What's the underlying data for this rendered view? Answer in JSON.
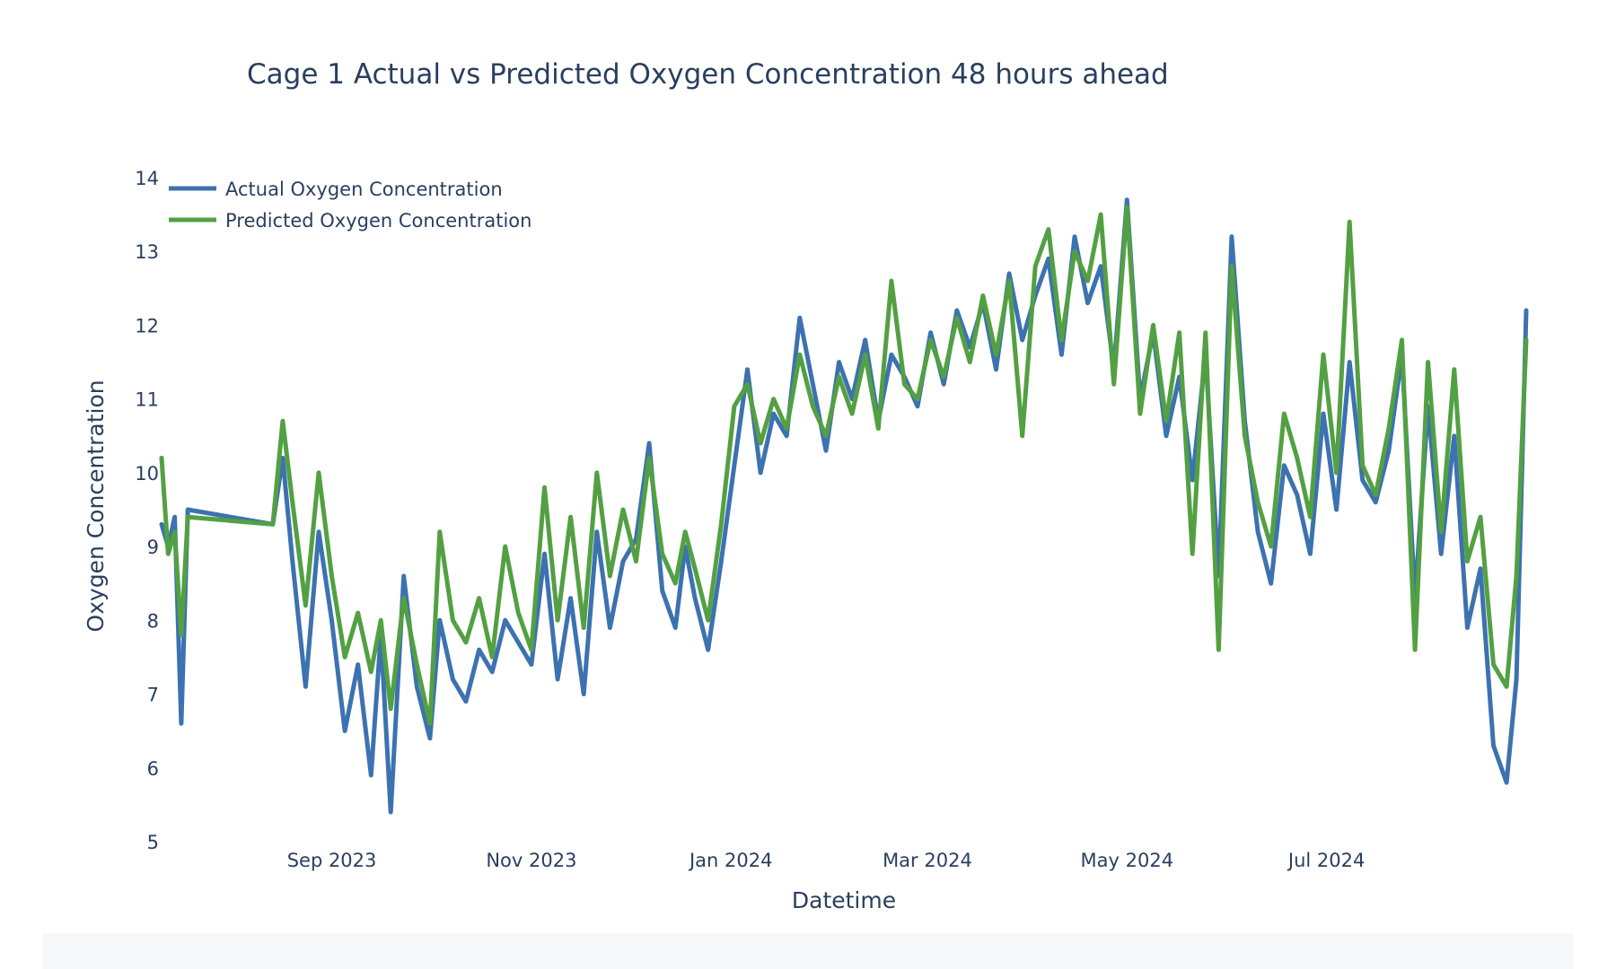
{
  "chart_data": {
    "type": "line",
    "title": "Cage 1 Actual vs Predicted Oxygen Concentration 48 hours ahead",
    "xlabel": "Datetime",
    "ylabel": "Oxygen Concentration",
    "x_type": "date",
    "xlim": [
      "2023-07-11",
      "2024-08-31"
    ],
    "ylim": [
      5,
      14
    ],
    "y_ticks": [
      5,
      6,
      7,
      8,
      9,
      10,
      11,
      12,
      13,
      14
    ],
    "x_ticks": [
      {
        "date": "2023-09-01",
        "label": "Sep 2023"
      },
      {
        "date": "2023-11-01",
        "label": "Nov 2023"
      },
      {
        "date": "2024-01-01",
        "label": "Jan 2024"
      },
      {
        "date": "2024-03-01",
        "label": "Mar 2024"
      },
      {
        "date": "2024-05-01",
        "label": "May 2024"
      },
      {
        "date": "2024-07-01",
        "label": "Jul 2024"
      }
    ],
    "grid": false,
    "legend_position": "top-left",
    "series": [
      {
        "name": "Actual Oxygen Concentration",
        "color": "#3d72b0",
        "x": [
          "2023-07-11",
          "2023-07-13",
          "2023-07-15",
          "2023-07-17",
          "2023-07-19",
          "2023-08-14",
          "2023-08-17",
          "2023-08-20",
          "2023-08-24",
          "2023-08-28",
          "2023-09-01",
          "2023-09-05",
          "2023-09-09",
          "2023-09-13",
          "2023-09-16",
          "2023-09-19",
          "2023-09-23",
          "2023-09-27",
          "2023-10-01",
          "2023-10-04",
          "2023-10-08",
          "2023-10-12",
          "2023-10-16",
          "2023-10-20",
          "2023-10-24",
          "2023-10-28",
          "2023-11-01",
          "2023-11-05",
          "2023-11-09",
          "2023-11-13",
          "2023-11-17",
          "2023-11-21",
          "2023-11-25",
          "2023-11-29",
          "2023-12-03",
          "2023-12-07",
          "2023-12-11",
          "2023-12-15",
          "2023-12-18",
          "2023-12-21",
          "2023-12-25",
          "2023-12-29",
          "2024-01-02",
          "2024-01-06",
          "2024-01-10",
          "2024-01-14",
          "2024-01-18",
          "2024-01-22",
          "2024-01-26",
          "2024-01-30",
          "2024-02-03",
          "2024-02-07",
          "2024-02-11",
          "2024-02-15",
          "2024-02-19",
          "2024-02-23",
          "2024-02-27",
          "2024-03-02",
          "2024-03-06",
          "2024-03-10",
          "2024-03-14",
          "2024-03-18",
          "2024-03-22",
          "2024-03-26",
          "2024-03-30",
          "2024-04-03",
          "2024-04-07",
          "2024-04-11",
          "2024-04-15",
          "2024-04-19",
          "2024-04-23",
          "2024-04-27",
          "2024-05-01",
          "2024-05-05",
          "2024-05-09",
          "2024-05-13",
          "2024-05-17",
          "2024-05-21",
          "2024-05-25",
          "2024-05-29",
          "2024-06-02",
          "2024-06-06",
          "2024-06-10",
          "2024-06-14",
          "2024-06-18",
          "2024-06-22",
          "2024-06-26",
          "2024-06-30",
          "2024-07-04",
          "2024-07-08",
          "2024-07-12",
          "2024-07-16",
          "2024-07-20",
          "2024-07-24",
          "2024-07-28",
          "2024-08-01",
          "2024-08-05",
          "2024-08-09",
          "2024-08-13",
          "2024-08-17",
          "2024-08-21",
          "2024-08-25",
          "2024-08-28",
          "2024-08-31"
        ],
        "y": [
          9.3,
          9.0,
          9.4,
          6.6,
          9.5,
          9.3,
          10.2,
          8.8,
          7.1,
          9.2,
          8.0,
          6.5,
          7.4,
          5.9,
          7.8,
          5.4,
          8.6,
          7.1,
          6.4,
          8.0,
          7.2,
          6.9,
          7.6,
          7.3,
          8.0,
          7.7,
          7.4,
          8.9,
          7.2,
          8.3,
          7.0,
          9.2,
          7.9,
          8.8,
          9.1,
          10.4,
          8.4,
          7.9,
          9.0,
          8.3,
          7.6,
          8.8,
          10.1,
          11.4,
          10.0,
          10.8,
          10.5,
          12.1,
          11.2,
          10.3,
          11.5,
          11.0,
          11.8,
          10.7,
          11.6,
          11.3,
          10.9,
          11.9,
          11.2,
          12.2,
          11.7,
          12.3,
          11.4,
          12.7,
          11.8,
          12.4,
          12.9,
          11.6,
          13.2,
          12.3,
          12.8,
          11.4,
          13.7,
          11.0,
          11.9,
          10.5,
          11.3,
          9.9,
          11.6,
          8.6,
          13.2,
          10.7,
          9.2,
          8.5,
          10.1,
          9.7,
          8.9,
          10.8,
          9.5,
          11.5,
          9.9,
          9.6,
          10.3,
          11.6,
          8.3,
          10.9,
          8.9,
          10.5,
          7.9,
          8.7,
          6.3,
          5.8,
          7.2,
          12.2
        ]
      },
      {
        "name": "Predicted Oxygen Concentration",
        "color": "#53a043",
        "x": [
          "2023-07-11",
          "2023-07-13",
          "2023-07-15",
          "2023-07-17",
          "2023-07-19",
          "2023-08-14",
          "2023-08-17",
          "2023-08-20",
          "2023-08-24",
          "2023-08-28",
          "2023-09-01",
          "2023-09-05",
          "2023-09-09",
          "2023-09-13",
          "2023-09-16",
          "2023-09-19",
          "2023-09-23",
          "2023-09-27",
          "2023-10-01",
          "2023-10-04",
          "2023-10-08",
          "2023-10-12",
          "2023-10-16",
          "2023-10-20",
          "2023-10-24",
          "2023-10-28",
          "2023-11-01",
          "2023-11-05",
          "2023-11-09",
          "2023-11-13",
          "2023-11-17",
          "2023-11-21",
          "2023-11-25",
          "2023-11-29",
          "2023-12-03",
          "2023-12-07",
          "2023-12-11",
          "2023-12-15",
          "2023-12-18",
          "2023-12-21",
          "2023-12-25",
          "2023-12-29",
          "2024-01-02",
          "2024-01-06",
          "2024-01-10",
          "2024-01-14",
          "2024-01-18",
          "2024-01-22",
          "2024-01-26",
          "2024-01-30",
          "2024-02-03",
          "2024-02-07",
          "2024-02-11",
          "2024-02-15",
          "2024-02-19",
          "2024-02-23",
          "2024-02-27",
          "2024-03-02",
          "2024-03-06",
          "2024-03-10",
          "2024-03-14",
          "2024-03-18",
          "2024-03-22",
          "2024-03-26",
          "2024-03-30",
          "2024-04-03",
          "2024-04-07",
          "2024-04-11",
          "2024-04-15",
          "2024-04-19",
          "2024-04-23",
          "2024-04-27",
          "2024-05-01",
          "2024-05-05",
          "2024-05-09",
          "2024-05-13",
          "2024-05-17",
          "2024-05-21",
          "2024-05-25",
          "2024-05-29",
          "2024-06-02",
          "2024-06-06",
          "2024-06-10",
          "2024-06-14",
          "2024-06-18",
          "2024-06-22",
          "2024-06-26",
          "2024-06-30",
          "2024-07-04",
          "2024-07-08",
          "2024-07-12",
          "2024-07-16",
          "2024-07-20",
          "2024-07-24",
          "2024-07-28",
          "2024-08-01",
          "2024-08-05",
          "2024-08-09",
          "2024-08-13",
          "2024-08-17",
          "2024-08-21",
          "2024-08-25",
          "2024-08-28",
          "2024-08-31"
        ],
        "y": [
          10.2,
          8.9,
          9.2,
          7.8,
          9.4,
          9.3,
          10.7,
          9.6,
          8.2,
          10.0,
          8.6,
          7.5,
          8.1,
          7.3,
          8.0,
          6.8,
          8.3,
          7.4,
          6.6,
          9.2,
          8.0,
          7.7,
          8.3,
          7.5,
          9.0,
          8.1,
          7.6,
          9.8,
          8.0,
          9.4,
          7.9,
          10.0,
          8.6,
          9.5,
          8.8,
          10.2,
          8.9,
          8.5,
          9.2,
          8.7,
          8.0,
          9.3,
          10.9,
          11.2,
          10.4,
          11.0,
          10.6,
          11.6,
          10.9,
          10.5,
          11.3,
          10.8,
          11.6,
          10.6,
          12.6,
          11.2,
          11.0,
          11.8,
          11.3,
          12.1,
          11.5,
          12.4,
          11.6,
          12.6,
          10.5,
          12.8,
          13.3,
          11.8,
          13.0,
          12.6,
          13.5,
          11.2,
          13.6,
          10.8,
          12.0,
          10.7,
          11.9,
          8.9,
          11.9,
          7.6,
          12.8,
          10.5,
          9.6,
          9.0,
          10.8,
          10.2,
          9.4,
          11.6,
          10.0,
          13.4,
          10.1,
          9.7,
          10.6,
          11.8,
          7.6,
          11.5,
          9.2,
          11.4,
          8.8,
          9.4,
          7.4,
          7.1,
          8.6,
          11.8
        ]
      }
    ]
  }
}
